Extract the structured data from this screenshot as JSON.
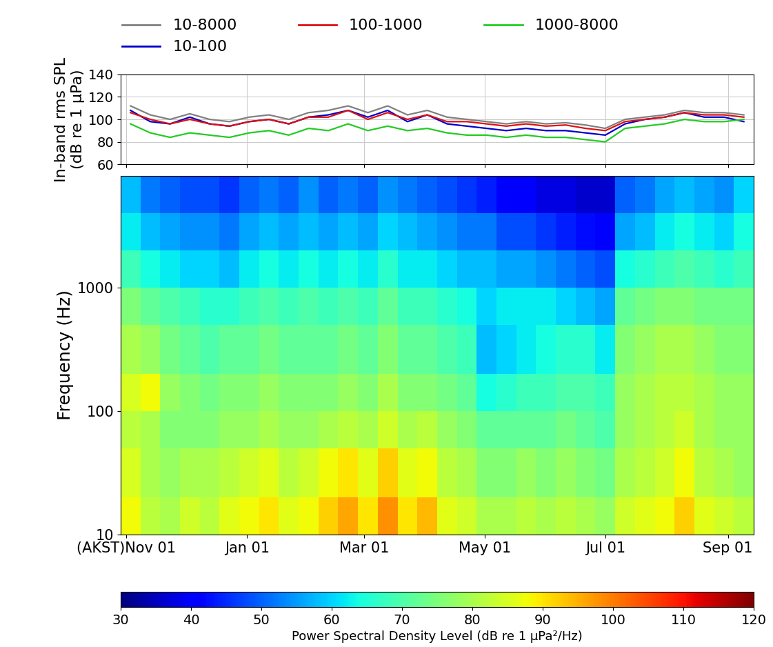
{
  "chart_data": [
    {
      "type": "line",
      "ylabel": "In-band rms SPL\n(dB re 1 µPa)",
      "x": [
        33,
        43,
        53,
        63,
        73,
        83,
        93,
        103,
        113,
        123,
        133,
        143,
        153,
        163,
        173,
        183,
        193,
        203,
        213,
        223,
        233,
        243,
        253,
        263,
        273,
        283,
        293,
        303,
        313,
        323,
        333,
        343
      ],
      "series": [
        {
          "name": "10-8000",
          "color": "#808080",
          "values": [
            112,
            104,
            100,
            105,
            100,
            98,
            102,
            104,
            100,
            106,
            108,
            112,
            106,
            112,
            104,
            108,
            102,
            100,
            98,
            96,
            98,
            96,
            97,
            95,
            92,
            100,
            102,
            104,
            108,
            106,
            106,
            104
          ]
        },
        {
          "name": "10-100",
          "color": "#0000cc",
          "values": [
            108,
            98,
            96,
            102,
            96,
            94,
            98,
            100,
            96,
            102,
            104,
            108,
            102,
            108,
            98,
            104,
            96,
            94,
            92,
            90,
            92,
            90,
            90,
            88,
            86,
            96,
            100,
            102,
            106,
            102,
            102,
            98
          ]
        },
        {
          "name": "100-1000",
          "color": "#dd1111",
          "values": [
            106,
            100,
            96,
            100,
            96,
            94,
            98,
            100,
            96,
            102,
            102,
            108,
            100,
            106,
            100,
            104,
            98,
            98,
            96,
            94,
            96,
            94,
            95,
            92,
            90,
            98,
            100,
            102,
            106,
            104,
            104,
            102
          ]
        },
        {
          "name": "1000-8000",
          "color": "#22cc22",
          "values": [
            96,
            88,
            84,
            88,
            86,
            84,
            88,
            90,
            86,
            92,
            90,
            96,
            90,
            94,
            90,
            92,
            88,
            86,
            86,
            84,
            86,
            84,
            84,
            82,
            80,
            92,
            94,
            96,
            100,
            98,
            98,
            100
          ]
        }
      ],
      "xlim": [
        28,
        348
      ],
      "ylim": [
        60,
        140
      ],
      "yticks": [
        60,
        80,
        100,
        120,
        140
      ],
      "grid": true,
      "legend": "lower left",
      "tick_labels": "y"
    },
    {
      "type": "heatmap",
      "ylabel": "Frequency (Hz)",
      "log": "y",
      "x_edges": [
        28,
        38,
        48,
        58,
        68,
        78,
        88,
        98,
        108,
        118,
        128,
        138,
        148,
        158,
        168,
        178,
        188,
        198,
        208,
        218,
        228,
        238,
        248,
        258,
        268,
        278,
        288,
        298,
        308,
        318,
        328,
        338,
        348
      ],
      "y_edges": [
        10,
        20,
        50,
        100,
        200,
        500,
        1000,
        2000,
        4000,
        8000
      ],
      "cells": [
        [
          88,
          85,
          82,
          85,
          80,
          75,
          68,
          62,
          58
        ],
        [
          82,
          80,
          80,
          88,
          78,
          72,
          64,
          58,
          52
        ],
        [
          80,
          78,
          76,
          78,
          74,
          70,
          62,
          56,
          50
        ],
        [
          84,
          80,
          76,
          76,
          72,
          68,
          60,
          54,
          48
        ],
        [
          82,
          80,
          76,
          74,
          70,
          66,
          60,
          54,
          48
        ],
        [
          86,
          82,
          78,
          76,
          72,
          66,
          58,
          52,
          46
        ],
        [
          88,
          84,
          78,
          76,
          72,
          68,
          62,
          56,
          50
        ],
        [
          90,
          86,
          80,
          78,
          74,
          70,
          64,
          58,
          52
        ],
        [
          86,
          82,
          78,
          76,
          72,
          68,
          62,
          56,
          50
        ],
        [
          88,
          84,
          78,
          76,
          72,
          70,
          64,
          58,
          54
        ],
        [
          92,
          88,
          80,
          76,
          72,
          68,
          62,
          56,
          50
        ],
        [
          96,
          90,
          82,
          78,
          74,
          70,
          64,
          58,
          52
        ],
        [
          90,
          86,
          80,
          76,
          72,
          68,
          62,
          56,
          50
        ],
        [
          98,
          92,
          84,
          80,
          76,
          72,
          66,
          60,
          54
        ],
        [
          90,
          86,
          80,
          76,
          72,
          68,
          62,
          58,
          52
        ],
        [
          94,
          88,
          82,
          76,
          72,
          68,
          62,
          56,
          50
        ],
        [
          86,
          82,
          78,
          74,
          70,
          66,
          60,
          54,
          48
        ],
        [
          84,
          80,
          76,
          72,
          68,
          64,
          58,
          52,
          46
        ],
        [
          80,
          76,
          72,
          64,
          58,
          60,
          58,
          52,
          44
        ],
        [
          80,
          76,
          72,
          66,
          60,
          62,
          56,
          48,
          40
        ],
        [
          82,
          78,
          72,
          68,
          62,
          62,
          56,
          48,
          40
        ],
        [
          80,
          76,
          72,
          68,
          64,
          62,
          54,
          46,
          38
        ],
        [
          82,
          78,
          74,
          70,
          66,
          60,
          52,
          44,
          38
        ],
        [
          80,
          76,
          72,
          70,
          66,
          58,
          50,
          42,
          36
        ],
        [
          78,
          74,
          70,
          68,
          62,
          56,
          48,
          40,
          36
        ],
        [
          84,
          80,
          78,
          78,
          76,
          72,
          64,
          56,
          50
        ],
        [
          86,
          82,
          80,
          80,
          78,
          74,
          66,
          58,
          52
        ],
        [
          88,
          84,
          82,
          82,
          80,
          76,
          68,
          62,
          56
        ],
        [
          92,
          88,
          84,
          82,
          80,
          76,
          70,
          64,
          58
        ],
        [
          86,
          82,
          80,
          80,
          78,
          74,
          68,
          62,
          56
        ],
        [
          84,
          80,
          78,
          78,
          76,
          74,
          66,
          60,
          54
        ],
        [
          82,
          78,
          78,
          78,
          76,
          74,
          68,
          64,
          60
        ]
      ],
      "xlim": [
        28,
        348
      ],
      "xticks": [
        {
          "value": 31,
          "label": "(AKST)Nov 01"
        },
        {
          "value": 92,
          "label": "Jan 01"
        },
        {
          "value": 151,
          "label": "Mar 01"
        },
        {
          "value": 212,
          "label": "May 01"
        },
        {
          "value": 273,
          "label": "Jul 01"
        },
        {
          "value": 335,
          "label": "Sep 01"
        }
      ],
      "ylim": [
        10,
        8000
      ],
      "yticks": [
        10,
        100,
        1000
      ],
      "colorbar": {
        "label": "Power Spectral Density Level (dB re 1 µPa²/Hz)",
        "range": [
          30,
          120
        ],
        "ticks": [
          30,
          40,
          50,
          60,
          70,
          80,
          90,
          100,
          110,
          120
        ]
      }
    }
  ]
}
